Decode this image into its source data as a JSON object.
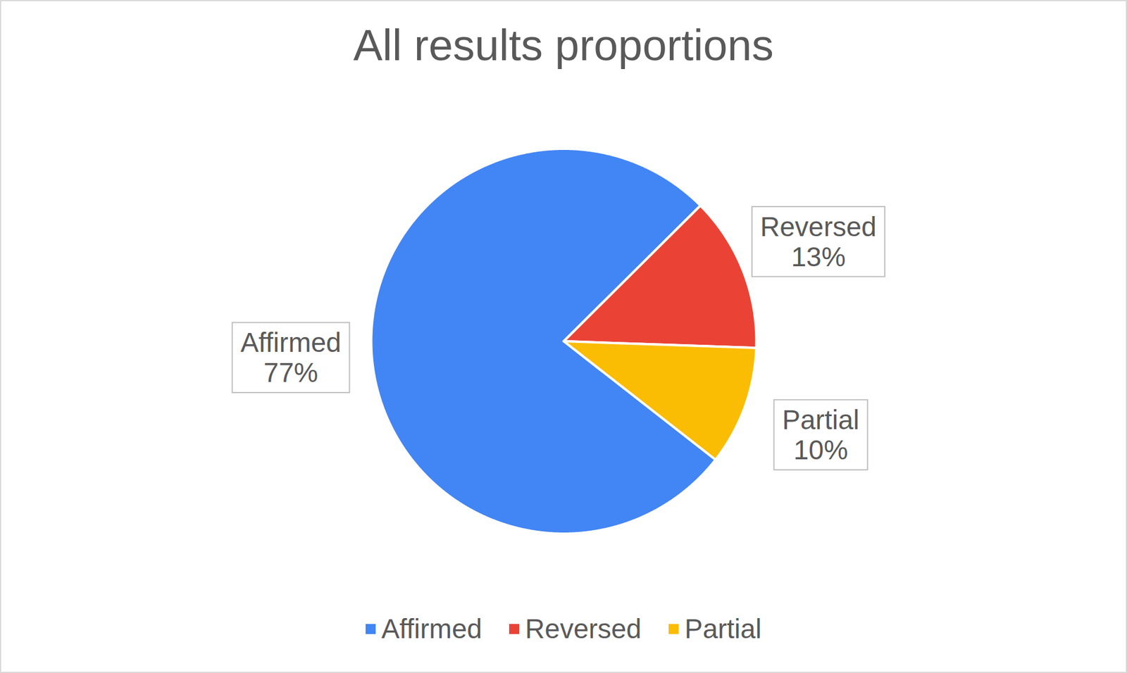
{
  "chart_data": {
    "type": "pie",
    "title": "All results proportions",
    "categories": [
      "Affirmed",
      "Reversed",
      "Partial"
    ],
    "values": [
      77,
      13,
      10
    ],
    "value_labels": [
      "77%",
      "13%",
      "10%"
    ],
    "colors": [
      "#4285f4",
      "#ea4335",
      "#fbbc04"
    ],
    "data_labels": true,
    "legend": "bottom"
  }
}
